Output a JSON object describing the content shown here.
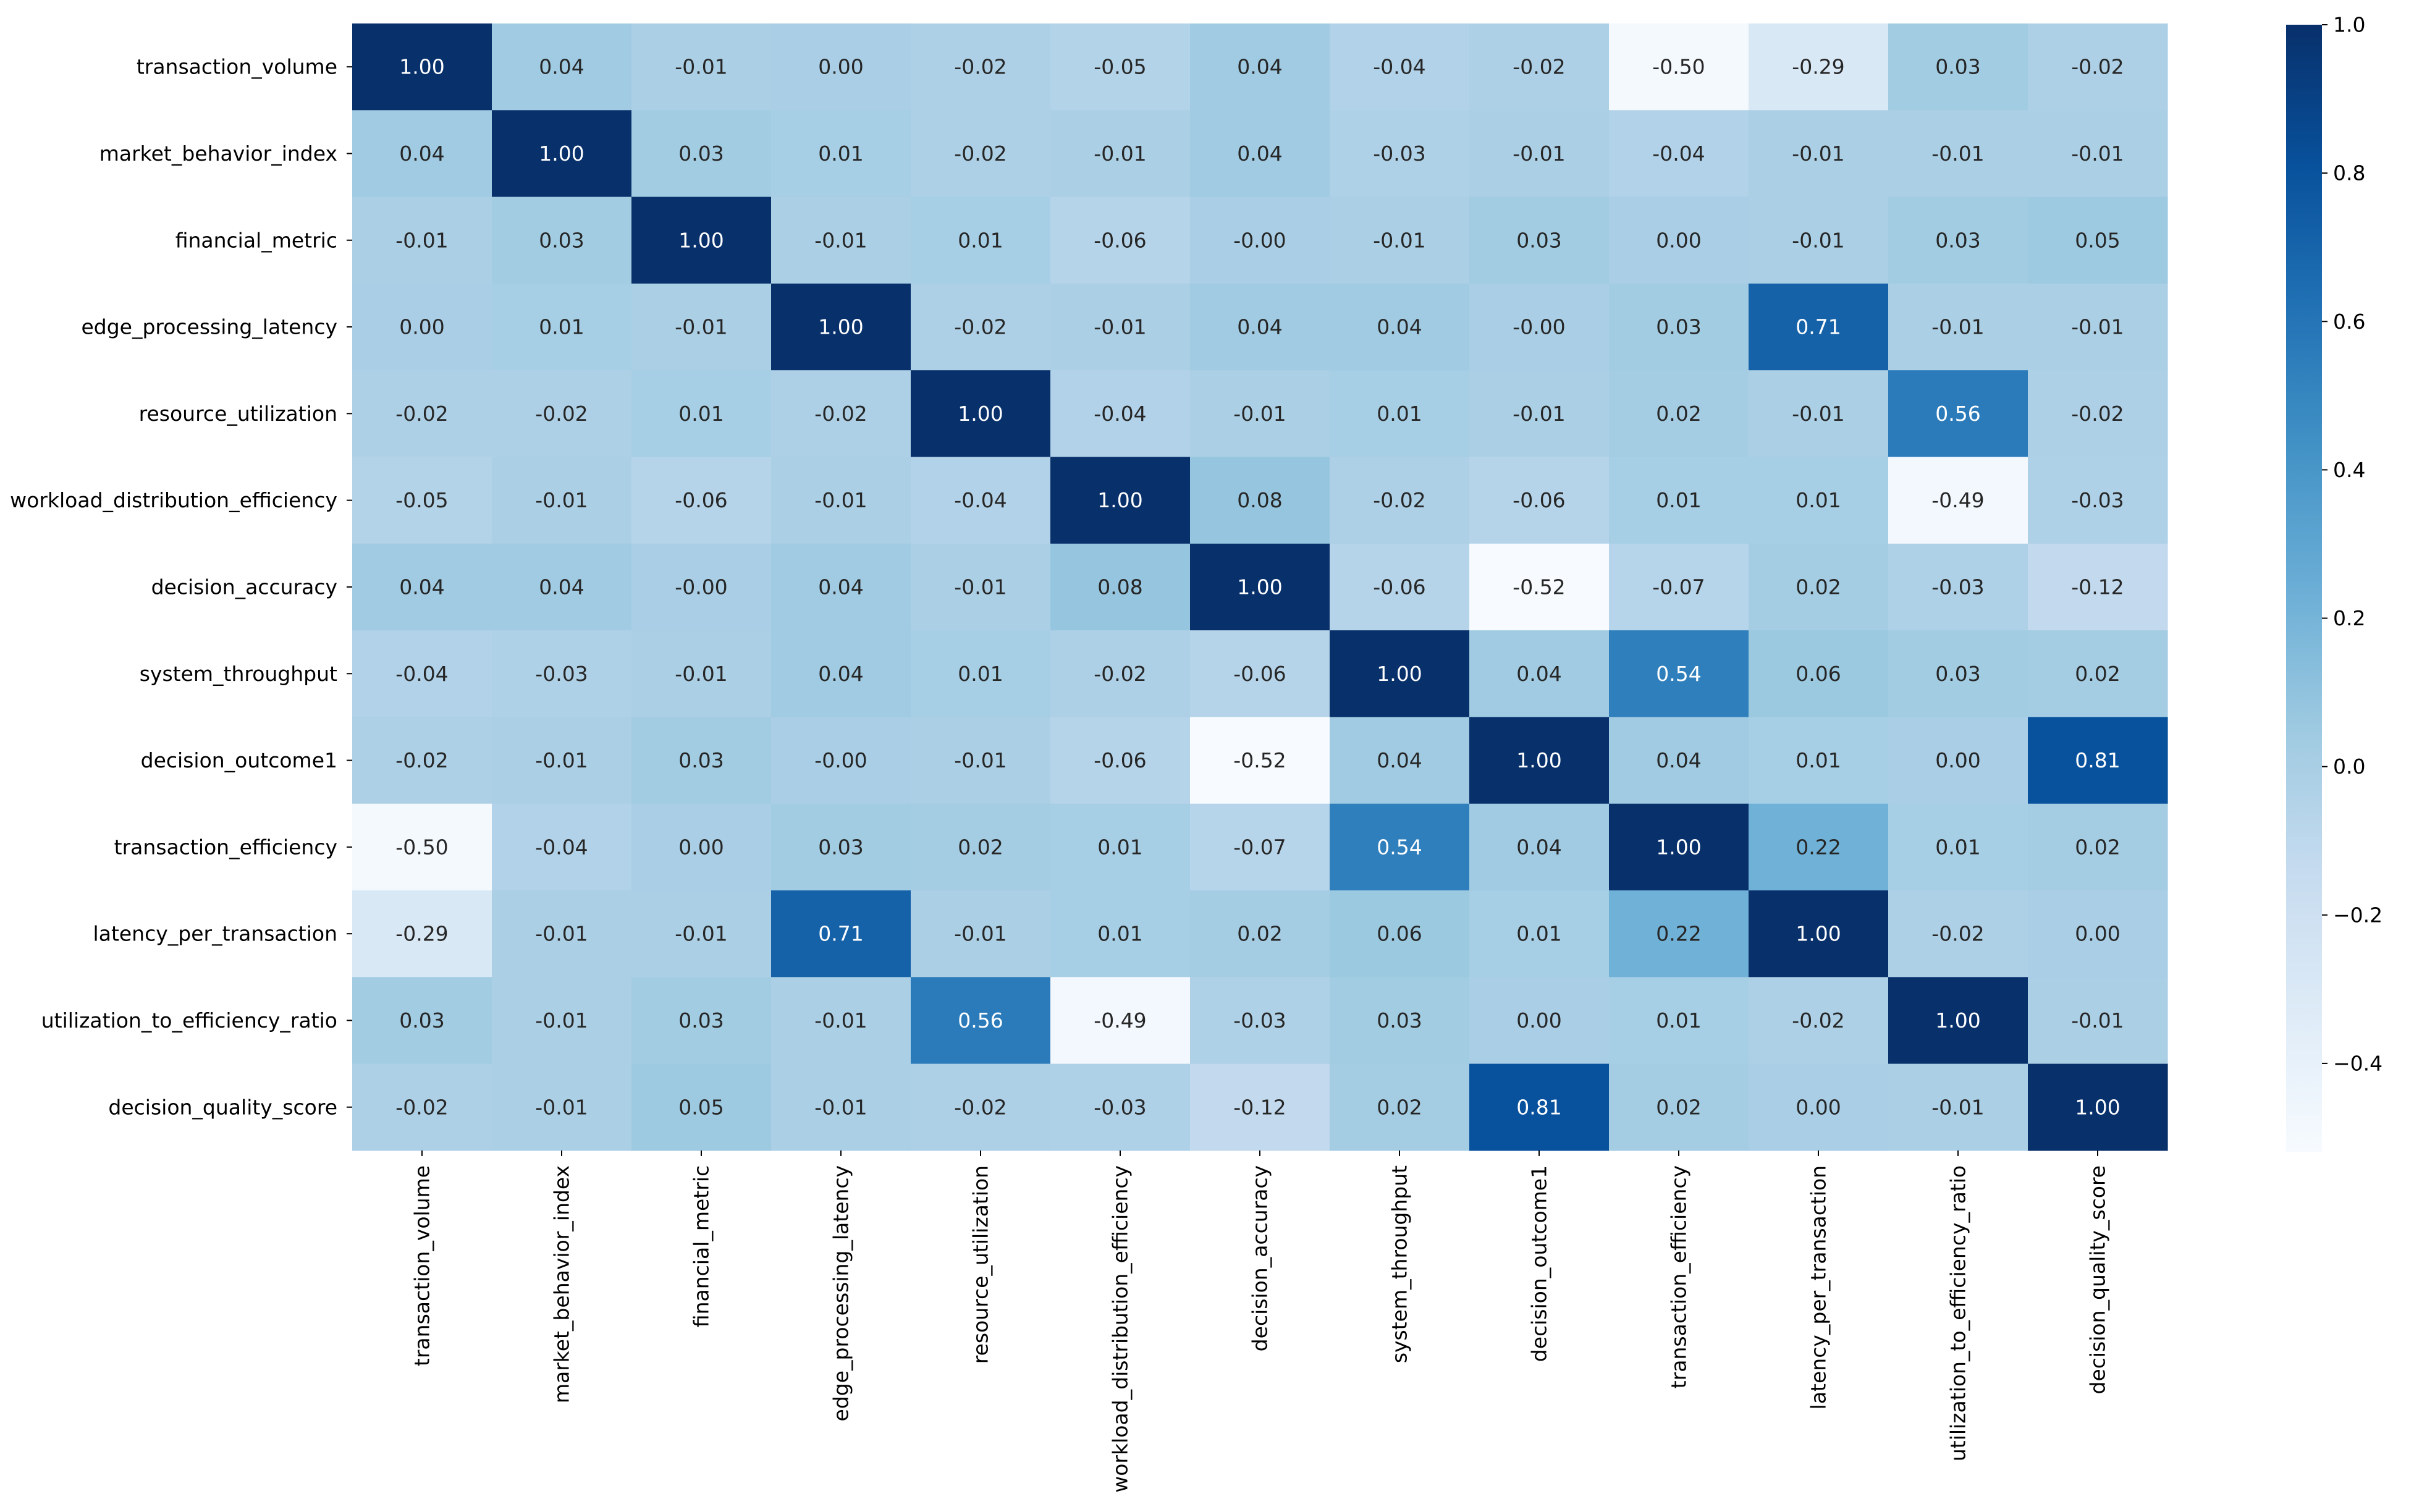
{
  "chart_data": {
    "type": "heatmap",
    "title": "",
    "xlabel": "",
    "ylabel": "",
    "variables": [
      "transaction_volume",
      "market_behavior_index",
      "financial_metric",
      "edge_processing_latency",
      "resource_utilization",
      "workload_distribution_efficiency",
      "decision_accuracy",
      "system_throughput",
      "decision_outcome1",
      "transaction_efficiency",
      "latency_per_transaction",
      "utilization_to_efficiency_ratio",
      "decision_quality_score"
    ],
    "labels": [
      [
        "1.00",
        "0.04",
        "-0.01",
        "0.00",
        "-0.02",
        "-0.05",
        "0.04",
        "-0.04",
        "-0.02",
        "-0.50",
        "-0.29",
        "0.03",
        "-0.02"
      ],
      [
        "0.04",
        "1.00",
        "0.03",
        "0.01",
        "-0.02",
        "-0.01",
        "0.04",
        "-0.03",
        "-0.01",
        "-0.04",
        "-0.01",
        "-0.01",
        "-0.01"
      ],
      [
        "-0.01",
        "0.03",
        "1.00",
        "-0.01",
        "0.01",
        "-0.06",
        "-0.00",
        "-0.01",
        "0.03",
        "0.00",
        "-0.01",
        "0.03",
        "0.05"
      ],
      [
        "0.00",
        "0.01",
        "-0.01",
        "1.00",
        "-0.02",
        "-0.01",
        "0.04",
        "0.04",
        "-0.00",
        "0.03",
        "0.71",
        "-0.01",
        "-0.01"
      ],
      [
        "-0.02",
        "-0.02",
        "0.01",
        "-0.02",
        "1.00",
        "-0.04",
        "-0.01",
        "0.01",
        "-0.01",
        "0.02",
        "-0.01",
        "0.56",
        "-0.02"
      ],
      [
        "-0.05",
        "-0.01",
        "-0.06",
        "-0.01",
        "-0.04",
        "1.00",
        "0.08",
        "-0.02",
        "-0.06",
        "0.01",
        "0.01",
        "-0.49",
        "-0.03"
      ],
      [
        "0.04",
        "0.04",
        "-0.00",
        "0.04",
        "-0.01",
        "0.08",
        "1.00",
        "-0.06",
        "-0.52",
        "-0.07",
        "0.02",
        "-0.03",
        "-0.12"
      ],
      [
        "-0.04",
        "-0.03",
        "-0.01",
        "0.04",
        "0.01",
        "-0.02",
        "-0.06",
        "1.00",
        "0.04",
        "0.54",
        "0.06",
        "0.03",
        "0.02"
      ],
      [
        "-0.02",
        "-0.01",
        "0.03",
        "-0.00",
        "-0.01",
        "-0.06",
        "-0.52",
        "0.04",
        "1.00",
        "0.04",
        "0.01",
        "0.00",
        "0.81"
      ],
      [
        "-0.50",
        "-0.04",
        "0.00",
        "0.03",
        "0.02",
        "0.01",
        "-0.07",
        "0.54",
        "0.04",
        "1.00",
        "0.22",
        "0.01",
        "0.02"
      ],
      [
        "-0.29",
        "-0.01",
        "-0.01",
        "0.71",
        "-0.01",
        "0.01",
        "0.02",
        "0.06",
        "0.01",
        "0.22",
        "1.00",
        "-0.02",
        "0.00"
      ],
      [
        "0.03",
        "-0.01",
        "0.03",
        "-0.01",
        "0.56",
        "-0.49",
        "-0.03",
        "0.03",
        "0.00",
        "0.01",
        "-0.02",
        "1.00",
        "-0.01"
      ],
      [
        "-0.02",
        "-0.01",
        "0.05",
        "-0.01",
        "-0.02",
        "-0.03",
        "-0.12",
        "0.02",
        "0.81",
        "0.02",
        "0.00",
        "-0.01",
        "1.00"
      ]
    ],
    "colorbar": {
      "colormap": "Blues",
      "vmin": -0.52,
      "vmax": 1.0,
      "ticks": [
        1.0,
        0.8,
        0.6,
        0.4,
        0.2,
        0.0,
        -0.2,
        -0.4
      ],
      "tick_labels": [
        "1.0",
        "0.8",
        "0.6",
        "0.4",
        "0.2",
        "0.0",
        "−0.2",
        "−0.4"
      ]
    }
  }
}
